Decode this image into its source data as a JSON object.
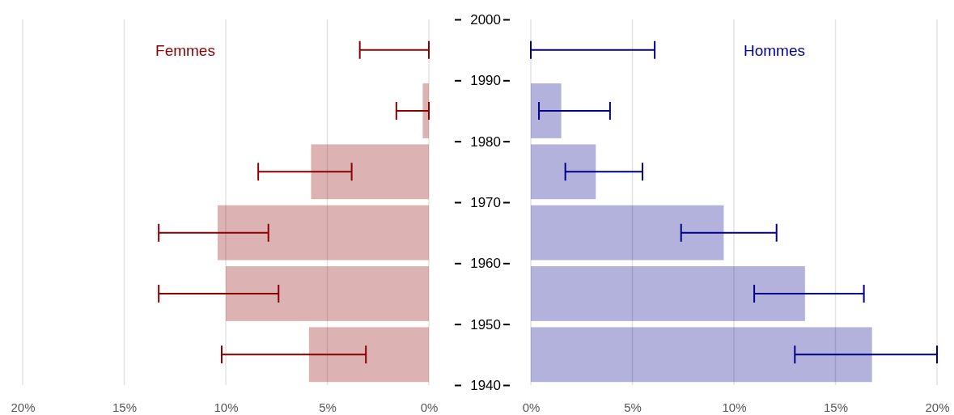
{
  "chart_data": [
    {
      "type": "bar",
      "orientation": "horizontal",
      "x": [
        1945,
        1955,
        1965,
        1975,
        1985,
        1995
      ],
      "xlim": [
        20,
        0
      ],
      "xticks": [
        {
          "value": 20,
          "label": "20%"
        },
        {
          "value": 15,
          "label": "15%"
        },
        {
          "value": 10,
          "label": "10%"
        },
        {
          "value": 5,
          "label": "5%"
        },
        {
          "value": 0,
          "label": "0%"
        }
      ],
      "ylim": [
        1940,
        2000
      ],
      "yticks": [
        1940,
        1950,
        1960,
        1970,
        1980,
        1990,
        2000
      ],
      "tick_labels": "x",
      "grid": "x",
      "series": [
        {
          "name": "Femmes",
          "color": "#8b0000",
          "values": [
            5.9,
            10.0,
            10.4,
            5.8,
            0.3,
            0
          ],
          "errors": [
            [
              3.1,
              10.2
            ],
            [
              7.4,
              13.3
            ],
            [
              7.9,
              13.3
            ],
            [
              3.8,
              8.4
            ],
            [
              0,
              1.6
            ],
            [
              0,
              3.4
            ]
          ]
        }
      ]
    },
    {
      "type": "bar",
      "orientation": "horizontal",
      "x": [
        1945,
        1955,
        1965,
        1975,
        1985,
        1995
      ],
      "xlim": [
        0,
        20
      ],
      "xticks": [
        {
          "value": 0,
          "label": "0%"
        },
        {
          "value": 5,
          "label": "5%"
        },
        {
          "value": 10,
          "label": "10%"
        },
        {
          "value": 15,
          "label": "15%"
        },
        {
          "value": 20,
          "label": "20%"
        }
      ],
      "ylim": [
        1940,
        2000
      ],
      "yticks": [
        1940,
        1950,
        1960,
        1970,
        1980,
        1990,
        2000
      ],
      "grid": "x",
      "series": [
        {
          "name": "Hommes",
          "color": "#00008b",
          "values": [
            16.8,
            13.5,
            9.5,
            3.2,
            1.5,
            0
          ],
          "errors": [
            [
              13.0,
              20
            ],
            [
              11.0,
              16.4
            ],
            [
              7.4,
              12.1
            ],
            [
              1.7,
              5.5
            ],
            [
              0.4,
              3.9
            ],
            [
              0,
              6.1
            ]
          ]
        }
      ]
    }
  ]
}
